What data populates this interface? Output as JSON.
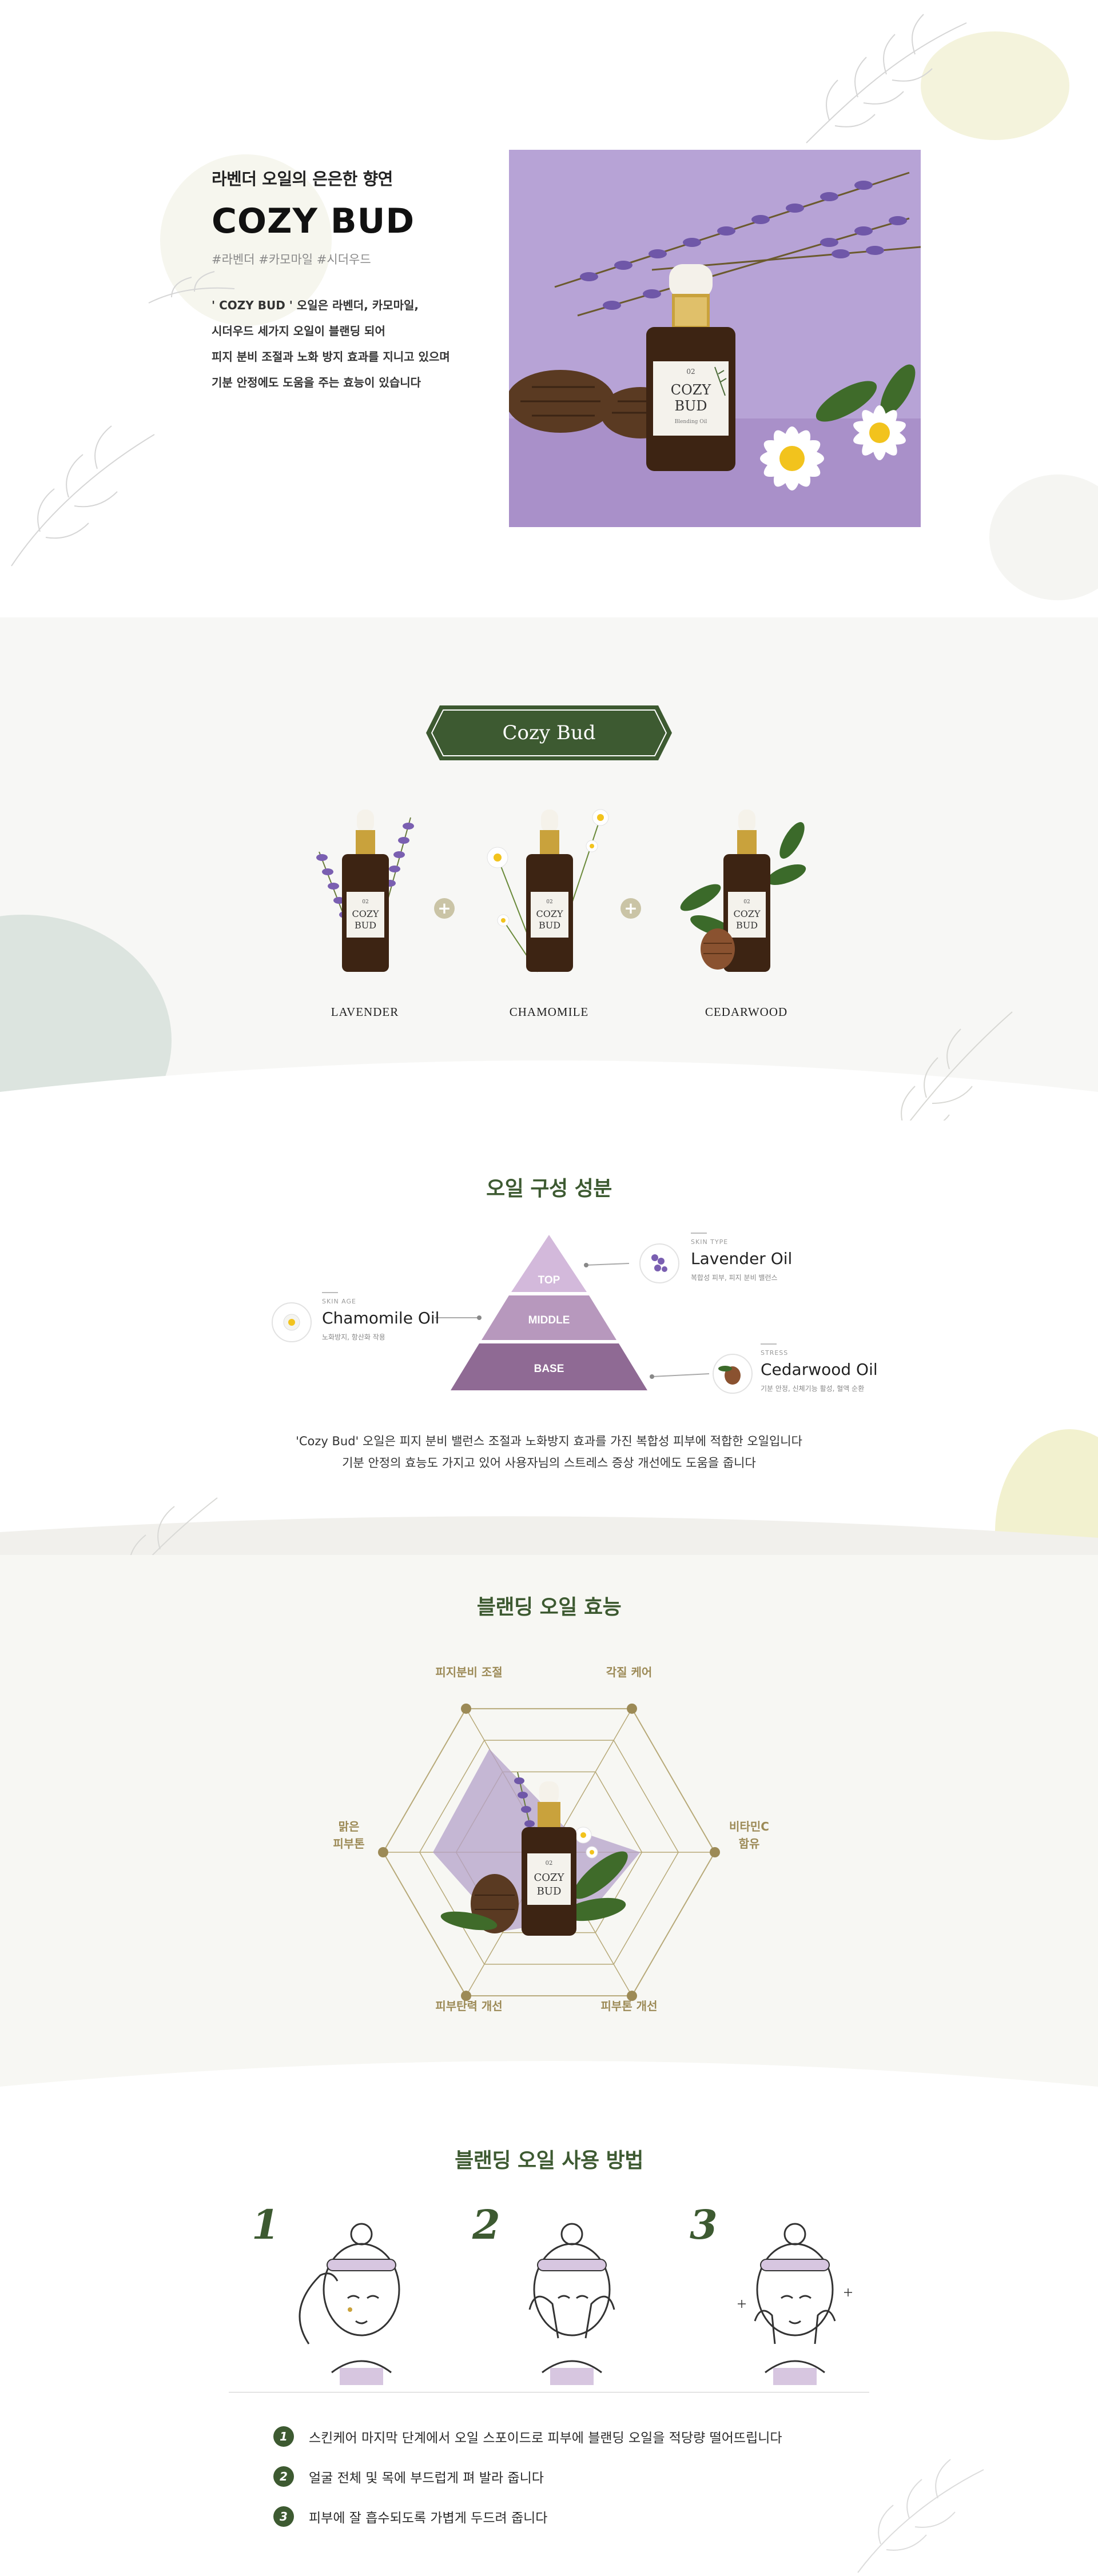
{
  "hero": {
    "subtitle": "라벤더 오일의 은은한 향연",
    "title": "COZY BUD",
    "tags": "#라벤더 #카모마일 #시더우드",
    "description": [
      "' COZY BUD ' 오일은 라벤더, 카모마일,",
      "시더우드 세가지 오일이 블랜딩 되어",
      "피지 분비 조절과 노화 방지 효과를 지니고 있으며",
      "기분 안정에도 도움을 주는 효능이 있습니다"
    ],
    "bottle_label": {
      "title": "COZY BUD",
      "mark": "02",
      "sub": "Blending Oil"
    }
  },
  "composition": {
    "badge": "Cozy Bud",
    "plus_symbol": "+",
    "ingredients": [
      {
        "label": "LAVENDER"
      },
      {
        "label": "CHAMOMILE"
      },
      {
        "label": "CEDARWOOD"
      }
    ],
    "bottle_label": {
      "line1": "COZY",
      "line2": "BUD",
      "mark": "02"
    }
  },
  "pyramid": {
    "title": "오일 구성 성분",
    "levels": {
      "top": "TOP",
      "middle": "MIDDLE",
      "base": "BASE"
    },
    "oils": {
      "lavender": {
        "small": "SKIN TYPE",
        "name": "Lavender Oil",
        "desc": "복합성 피부, 피지 분비 밸런스"
      },
      "chamomile": {
        "small": "SKIN AGE",
        "name": "Chamomile Oil",
        "desc": "노화방지, 항산화 작용"
      },
      "cedarwood": {
        "small": "STRESS",
        "name": "Cedarwood Oil",
        "desc": "기분 안정, 신체기능 활성, 혈액 순환"
      }
    },
    "description": [
      "'Cozy Bud' 오일은 피지 분비 밸런스 조절과 노화방지 효과를 가진 복합성 피부에 적합한 오일입니다",
      "기분 안정의 효능도 가지고 있어 사용자님의 스트레스 증상 개선에도 도움을 줍니다"
    ]
  },
  "effects": {
    "title": "블랜딩 오일 효능",
    "labels": {
      "top_left": "피지분비 조절",
      "top_right": "각질 케어",
      "left": [
        "맑은",
        "피부톤"
      ],
      "right": [
        "비타민C",
        "함유"
      ],
      "bottom_left": "피부탄력 개선",
      "bottom_right": "피부톤 개선"
    },
    "radar_values": [
      0.72,
      0.18,
      0.55,
      0.45,
      0.55,
      0.7
    ],
    "bottle_label": {
      "line1": "COZY",
      "line2": "BUD",
      "mark": "02"
    },
    "colors": {
      "radar_fill": "#b4a2ca",
      "hex_line": "#b7a978",
      "dot": "#9c8a56"
    }
  },
  "usage": {
    "title": "블랜딩 오일 사용 방법",
    "steps": [
      "1",
      "2",
      "3"
    ],
    "instructions": [
      {
        "num": "1",
        "text": "스킨케어 마지막 단계에서 오일 스포이드로 피부에 블랜딩 오일을 적당량 떨어뜨립니다"
      },
      {
        "num": "2",
        "text": "얼굴 전체 및 목에 부드럽게 펴 발라 줍니다"
      },
      {
        "num": "3",
        "text": "피부에 잘 흡수되도록 가볍게 두드려 줍니다"
      }
    ]
  },
  "colors": {
    "accent_green": "#3d5a31",
    "lavender": "#b39ed3",
    "gold": "#9c8a56"
  }
}
